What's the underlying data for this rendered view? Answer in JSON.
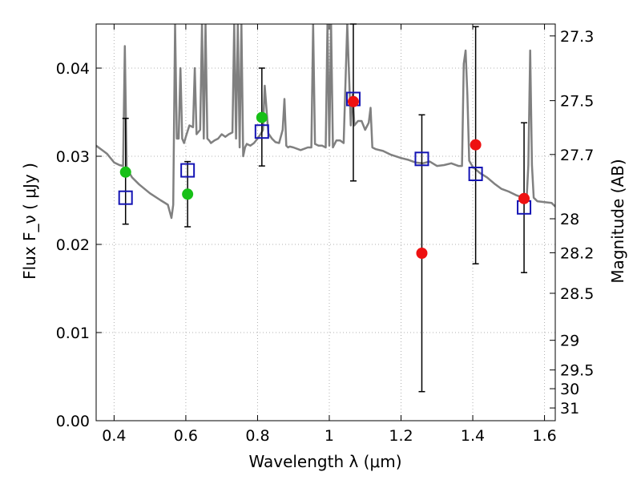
{
  "chart_data": {
    "type": "scatter",
    "title": "",
    "xlabel": "Wavelength  λ (μm)",
    "ylabel": "Flux  F_ν  ( μJy )",
    "ylabel_right": "Magnitude (AB)",
    "xlim": [
      0.35,
      1.63
    ],
    "ylim": [
      0.0,
      0.045
    ],
    "grid": true,
    "grid_style": "dotted",
    "x_ticks": [
      0.4,
      0.6,
      0.8,
      1.0,
      1.2,
      1.4,
      1.6
    ],
    "x_tick_labels": [
      "0.4",
      "0.6",
      "0.8",
      "1",
      "1.2",
      "1.4",
      "1.6"
    ],
    "y_ticks": [
      0.0,
      0.01,
      0.02,
      0.03,
      0.04
    ],
    "y_tick_labels": [
      "0.00",
      "0.01",
      "0.02",
      "0.03",
      "0.04"
    ],
    "mag_ticks": [
      27.3,
      27.5,
      27.7,
      28,
      28.2,
      28.5,
      29,
      29.5,
      30,
      31
    ],
    "mag_tick_labels": [
      "27.3",
      "27.5",
      "27.7",
      "28",
      "28.2",
      "28.5",
      "29",
      "29.5",
      "30",
      "31"
    ],
    "colors": {
      "model_line": "#808080",
      "green_points": "#17c017",
      "red_points": "#ee1111",
      "model_squares": "#1414b4",
      "errorbars": "#000000",
      "grid": "#b0b0b0"
    },
    "series": [
      {
        "kind": "line",
        "x": [
          0.35,
          0.38,
          0.4,
          0.415,
          0.425,
          0.43,
          0.435,
          0.44,
          0.45,
          0.47,
          0.5,
          0.53,
          0.55,
          0.56,
          0.565,
          0.57,
          0.575,
          0.58,
          0.585,
          0.59,
          0.595,
          0.6,
          0.61,
          0.62,
          0.625,
          0.63,
          0.64,
          0.645,
          0.65,
          0.655,
          0.66,
          0.665,
          0.67,
          0.68,
          0.69,
          0.7,
          0.71,
          0.72,
          0.73,
          0.735,
          0.74,
          0.745,
          0.75,
          0.755,
          0.76,
          0.765,
          0.77,
          0.78,
          0.79,
          0.8,
          0.81,
          0.815,
          0.82,
          0.83,
          0.84,
          0.85,
          0.86,
          0.87,
          0.875,
          0.88,
          0.885,
          0.89,
          0.9,
          0.92,
          0.94,
          0.95,
          0.955,
          0.96,
          0.97,
          0.98,
          0.99,
          0.995,
          1.0,
          1.005,
          1.01,
          1.02,
          1.03,
          1.04,
          1.05,
          1.06,
          1.065,
          1.07,
          1.08,
          1.09,
          1.1,
          1.11,
          1.115,
          1.12,
          1.13,
          1.15,
          1.17,
          1.2,
          1.22,
          1.24,
          1.26,
          1.28,
          1.3,
          1.32,
          1.34,
          1.36,
          1.37,
          1.375,
          1.38,
          1.385,
          1.39,
          1.4,
          1.42,
          1.44,
          1.46,
          1.48,
          1.5,
          1.52,
          1.54,
          1.55,
          1.555,
          1.56,
          1.565,
          1.57,
          1.58,
          1.6,
          1.62,
          1.63
        ],
        "y": [
          0.0312,
          0.0303,
          0.0293,
          0.029,
          0.0289,
          0.0425,
          0.0286,
          0.0283,
          0.0276,
          0.0268,
          0.0258,
          0.025,
          0.0245,
          0.023,
          0.0245,
          0.045,
          0.032,
          0.032,
          0.04,
          0.032,
          0.0315,
          0.0322,
          0.0335,
          0.0333,
          0.04,
          0.0325,
          0.033,
          0.045,
          0.032,
          0.045,
          0.032,
          0.0318,
          0.0315,
          0.0318,
          0.032,
          0.0325,
          0.0322,
          0.0325,
          0.0327,
          0.045,
          0.032,
          0.045,
          0.031,
          0.045,
          0.03,
          0.031,
          0.0314,
          0.0312,
          0.0315,
          0.032,
          0.0326,
          0.033,
          0.038,
          0.0326,
          0.032,
          0.0316,
          0.0315,
          0.033,
          0.0365,
          0.0312,
          0.031,
          0.0311,
          0.031,
          0.0307,
          0.031,
          0.031,
          0.045,
          0.0314,
          0.0312,
          0.0312,
          0.031,
          0.045,
          0.0312,
          0.045,
          0.031,
          0.0318,
          0.0318,
          0.0315,
          0.045,
          0.0335,
          0.037,
          0.0335,
          0.034,
          0.034,
          0.033,
          0.0338,
          0.0355,
          0.031,
          0.0308,
          0.0306,
          0.0302,
          0.0298,
          0.0296,
          0.0293,
          0.0292,
          0.0294,
          0.0289,
          0.029,
          0.0292,
          0.0289,
          0.0289,
          0.0405,
          0.042,
          0.037,
          0.0295,
          0.0288,
          0.0281,
          0.0276,
          0.0269,
          0.0263,
          0.026,
          0.0256,
          0.0253,
          0.025,
          0.029,
          0.042,
          0.029,
          0.0253,
          0.0249,
          0.0248,
          0.0247,
          0.0243
        ]
      },
      {
        "kind": "points",
        "marker": "circle",
        "color": "green",
        "x": [
          0.432,
          0.605,
          0.812
        ],
        "y": [
          0.0282,
          0.0257,
          0.0344
        ]
      },
      {
        "kind": "points",
        "marker": "circle",
        "color": "red",
        "x": [
          1.067,
          1.258,
          1.408,
          1.543
        ],
        "y": [
          0.0362,
          0.019,
          0.0313,
          0.0252
        ]
      },
      {
        "kind": "points",
        "marker": "square",
        "color": "blue",
        "x": [
          0.432,
          0.605,
          0.812,
          1.067,
          1.258,
          1.408,
          1.543
        ],
        "y": [
          0.0253,
          0.0284,
          0.0328,
          0.0365,
          0.0297,
          0.028,
          0.0242
        ]
      },
      {
        "kind": "errorbars",
        "x": [
          0.432,
          0.605,
          0.812,
          1.067,
          1.258,
          1.408,
          1.543
        ],
        "ylow": [
          0.0223,
          0.022,
          0.0289,
          0.0272,
          0.0033,
          0.0178,
          0.0168
        ],
        "yhigh": [
          0.0343,
          0.0294,
          0.04,
          0.045,
          0.0347,
          0.0447,
          0.0338
        ]
      }
    ]
  }
}
